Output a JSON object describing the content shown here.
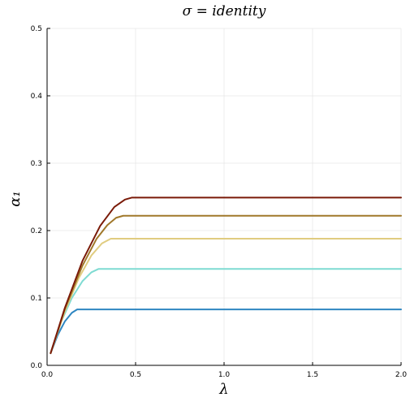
{
  "chart_data": {
    "type": "line",
    "title": "σ = identity",
    "xlabel": "λ",
    "ylabel": "α₁",
    "xlim": [
      0,
      2
    ],
    "ylim": [
      0,
      0.5
    ],
    "xticks": [
      0.0,
      0.5,
      1.0,
      1.5,
      2.0
    ],
    "xtick_labels": [
      "0.0",
      "0.5",
      "1.0",
      "1.5",
      "2.0"
    ],
    "yticks": [
      0.0,
      0.1,
      0.2,
      0.3,
      0.4,
      0.5
    ],
    "ytick_labels": [
      "0.0",
      "0.1",
      "0.2",
      "0.3",
      "0.4",
      "0.5"
    ],
    "grid": true,
    "legend": "none",
    "series": [
      {
        "color": "#2e86c1",
        "x": [
          0.02,
          0.06,
          0.1,
          0.14,
          0.17,
          0.2,
          2.0
        ],
        "y": [
          0.018,
          0.045,
          0.065,
          0.078,
          0.083,
          0.083,
          0.083
        ]
      },
      {
        "color": "#7fdbd2",
        "x": [
          0.02,
          0.08,
          0.14,
          0.2,
          0.25,
          0.29,
          0.32,
          2.0
        ],
        "y": [
          0.018,
          0.065,
          0.1,
          0.125,
          0.138,
          0.143,
          0.143,
          0.143
        ]
      },
      {
        "color": "#e0cc80",
        "x": [
          0.02,
          0.1,
          0.18,
          0.25,
          0.31,
          0.36,
          0.4,
          2.0
        ],
        "y": [
          0.018,
          0.08,
          0.13,
          0.163,
          0.181,
          0.188,
          0.188,
          0.188
        ]
      },
      {
        "color": "#a0782a",
        "x": [
          0.02,
          0.1,
          0.2,
          0.28,
          0.34,
          0.39,
          0.43,
          0.48,
          2.0
        ],
        "y": [
          0.018,
          0.083,
          0.148,
          0.188,
          0.208,
          0.219,
          0.222,
          0.222,
          0.222
        ]
      },
      {
        "color": "#7a1a08",
        "x": [
          0.02,
          0.1,
          0.2,
          0.3,
          0.38,
          0.44,
          0.48,
          0.52,
          2.0
        ],
        "y": [
          0.018,
          0.085,
          0.155,
          0.207,
          0.235,
          0.246,
          0.249,
          0.249,
          0.249
        ]
      }
    ]
  }
}
